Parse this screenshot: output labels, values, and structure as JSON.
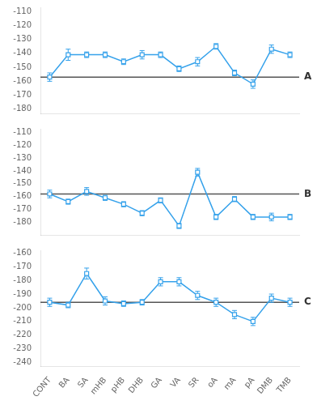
{
  "chart_data": [
    {
      "type": "line",
      "categories": [
        "CONT",
        "BA",
        "SA",
        "mHB",
        "pHB",
        "DHB",
        "GA",
        "VA",
        "SR",
        "oA",
        "mA",
        "pA",
        "DMB",
        "TMB"
      ],
      "values": [
        -157,
        -141,
        -141,
        -141,
        -146,
        -141,
        -141,
        -151,
        -146,
        -135,
        -154,
        -162,
        -137,
        -141
      ],
      "errors": [
        3,
        4,
        2,
        2,
        2,
        3,
        2,
        2,
        3,
        2,
        2,
        3,
        3,
        2
      ],
      "control_line": -157,
      "annotation": "A",
      "ylim": [
        -183,
        -107
      ],
      "yticks": [
        -180,
        -170,
        -160,
        -150,
        -140,
        -130,
        -120,
        -110
      ],
      "marker": "square",
      "grid": false,
      "tick_labels": "y"
    },
    {
      "type": "line",
      "categories": [
        "CONT",
        "BA",
        "SA",
        "mHB",
        "pHB",
        "DHB",
        "GA",
        "VA",
        "SR",
        "oA",
        "mA",
        "pA",
        "DMB",
        "TMB"
      ],
      "values": [
        -158,
        -164,
        -156,
        -161,
        -166,
        -173,
        -163,
        -183,
        -141,
        -176,
        -162,
        -176,
        -176,
        -176
      ],
      "errors": [
        3,
        2,
        3,
        2,
        2,
        2,
        2,
        2,
        3,
        2,
        2,
        2,
        3,
        2
      ],
      "control_line": -158,
      "annotation": "B",
      "ylim": [
        -190,
        -107
      ],
      "yticks": [
        -180,
        -170,
        -160,
        -150,
        -140,
        -130,
        -120,
        -110
      ],
      "marker": "square",
      "grid": false,
      "tick_labels": "y"
    },
    {
      "type": "line",
      "categories": [
        "CONT",
        "BA",
        "SA",
        "mHB",
        "pHB",
        "DHB",
        "GA",
        "VA",
        "SR",
        "oA",
        "mA",
        "pA",
        "DMB",
        "TMB"
      ],
      "values": [
        -196,
        -198,
        -175,
        -195,
        -197,
        -196,
        -181,
        -181,
        -191,
        -196,
        -205,
        -210,
        -193,
        -196
      ],
      "errors": [
        3,
        2,
        4,
        3,
        2,
        2,
        3,
        3,
        3,
        3,
        3,
        3,
        3,
        3
      ],
      "control_line": -196,
      "annotation": "C",
      "ylim": [
        -243,
        -158
      ],
      "yticks": [
        -240,
        -230,
        -220,
        -210,
        -200,
        -190,
        -180,
        -170,
        -160
      ],
      "marker": "square",
      "grid": false
    }
  ]
}
